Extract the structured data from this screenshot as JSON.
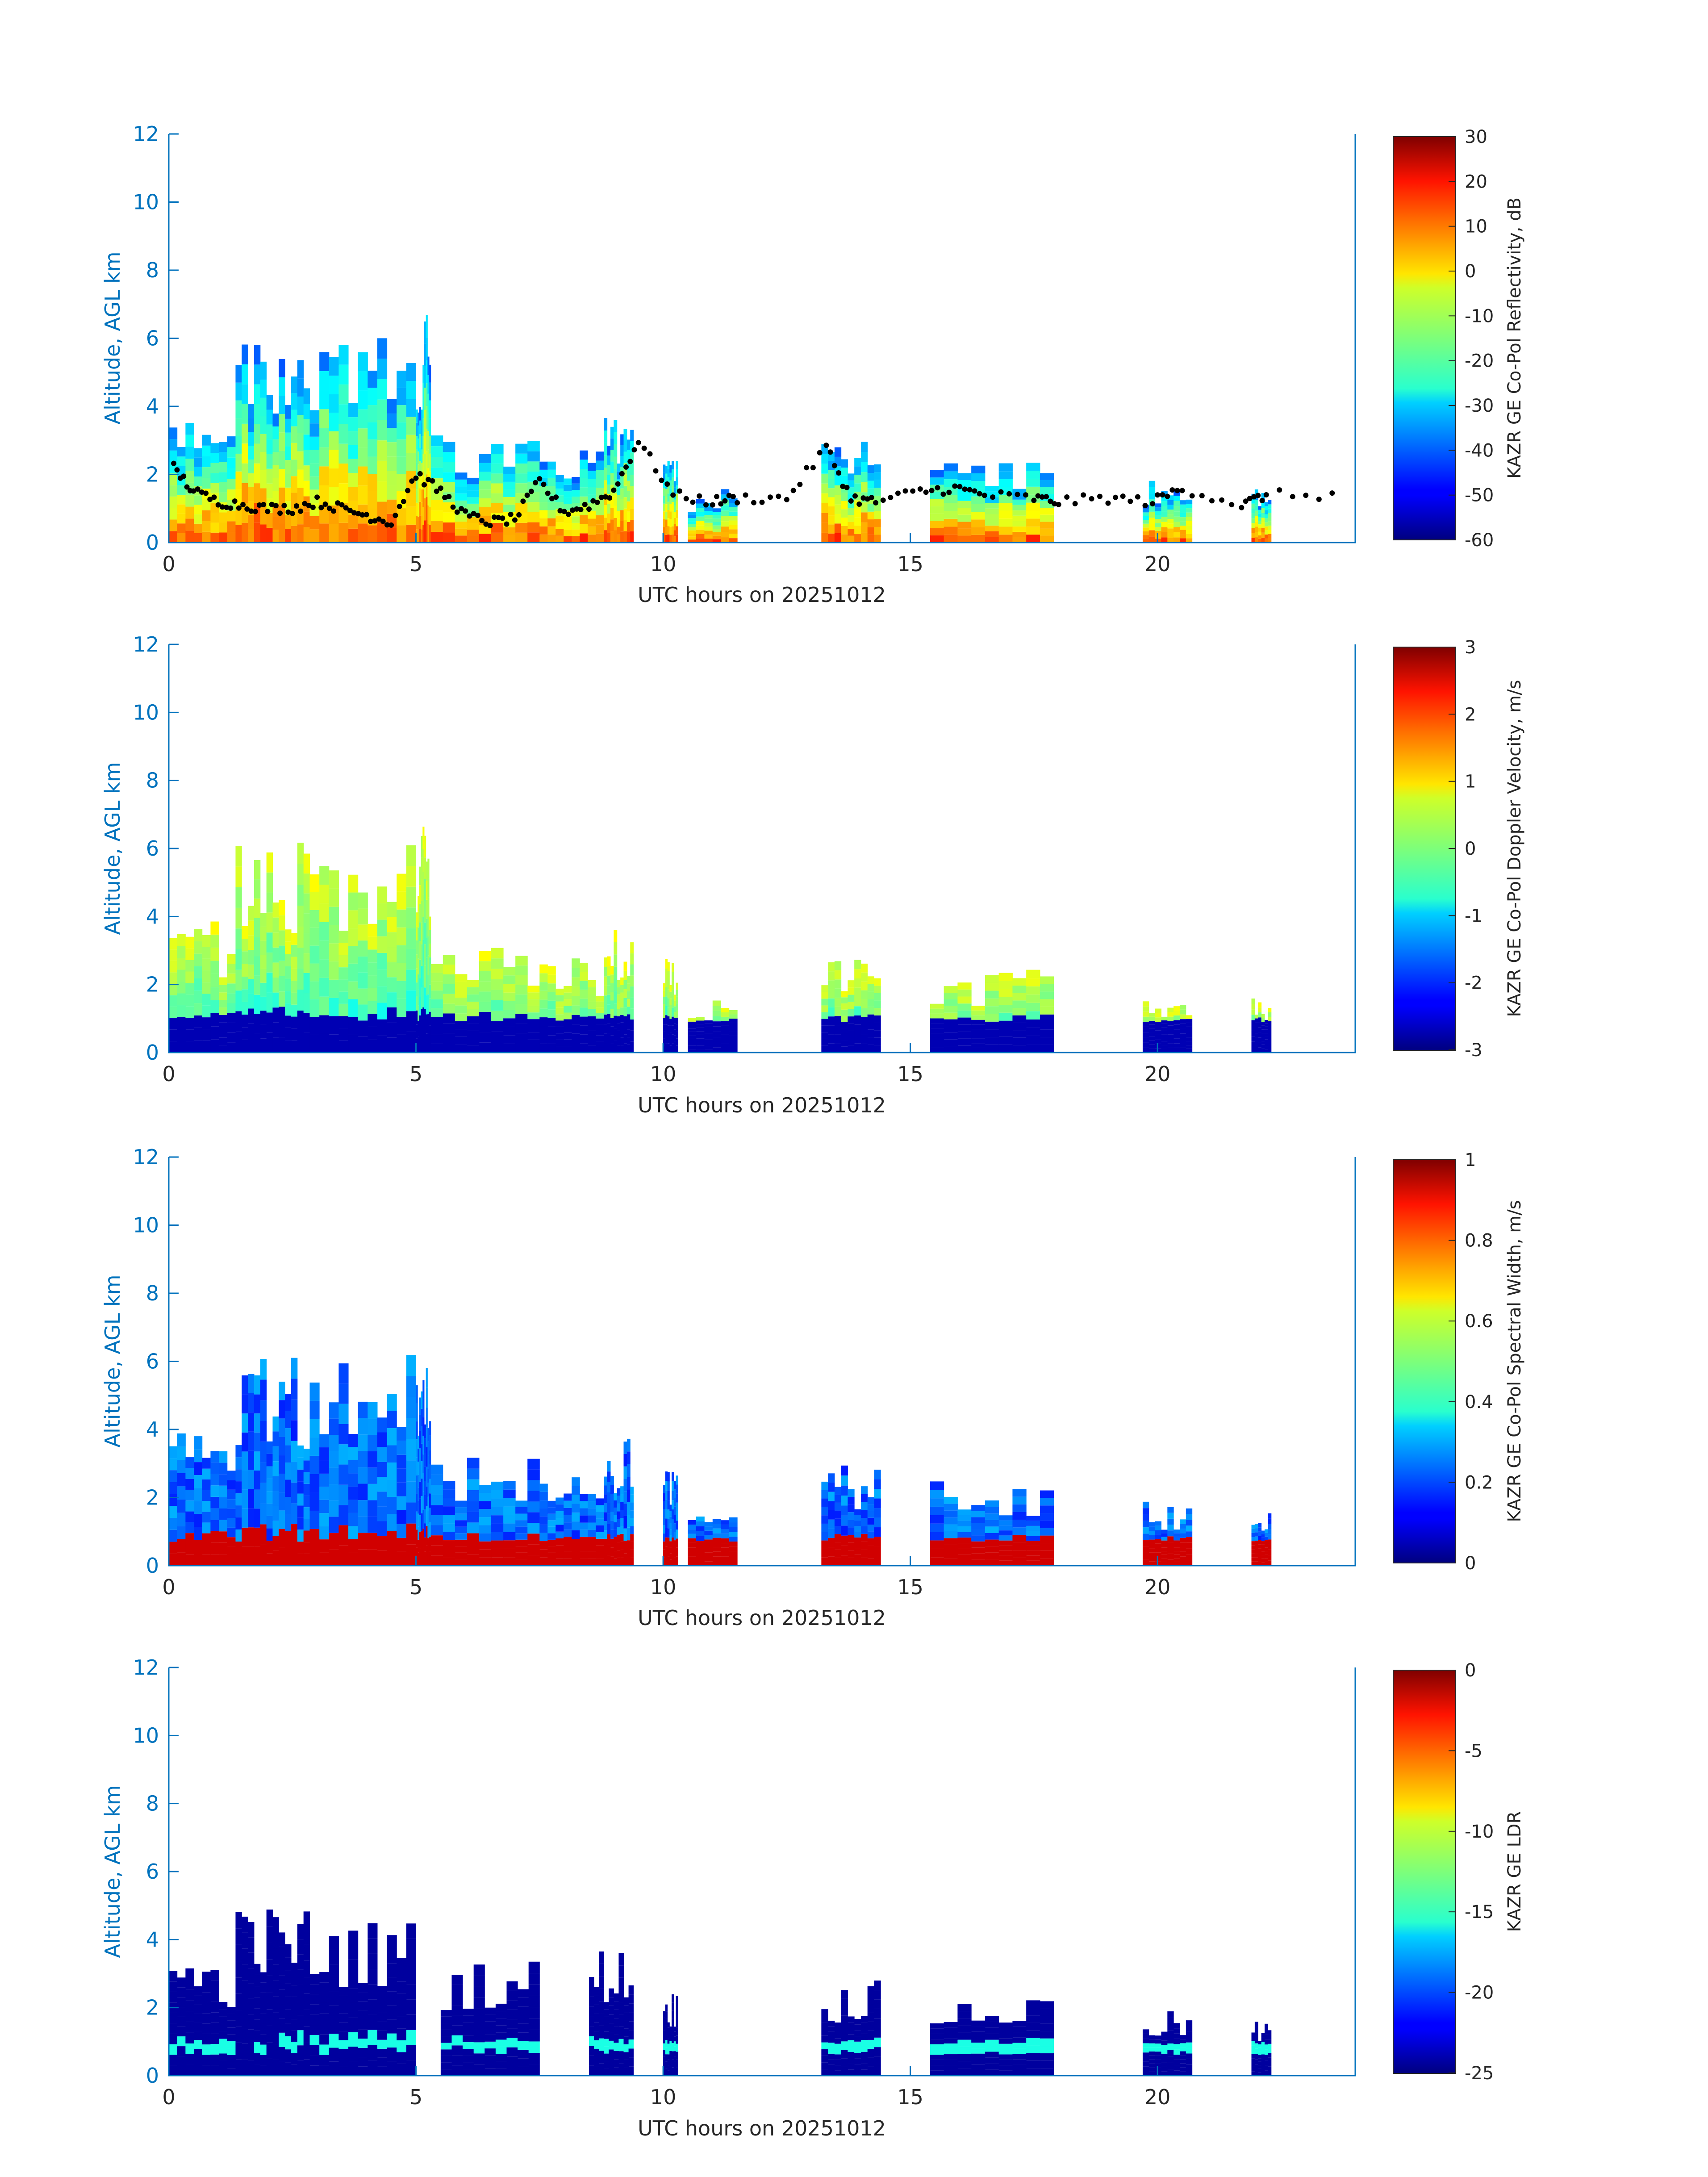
{
  "chart_data": [
    {
      "type": "heatmap",
      "ylabel": "Altitude, AGL km",
      "xlabel": "UTC hours on 20251012",
      "xlim": [
        0,
        24
      ],
      "ylim": [
        0,
        12
      ],
      "xticks": [
        "0",
        "5",
        "10",
        "15",
        "20"
      ],
      "yticks": [
        "0",
        "2",
        "4",
        "6",
        "8",
        "10",
        "12"
      ],
      "colorbar": {
        "label": "KAZR GE Co-Pol Reflectivity, dB",
        "range": [
          -60,
          30
        ],
        "ticks": [
          "30",
          "20",
          "10",
          "0",
          "-10",
          "-20",
          "-30",
          "-40",
          "-50",
          "-60"
        ]
      },
      "cloud_columns": [
        [
          0,
          1.35,
          4.0,
          8
        ],
        [
          1.35,
          2.85,
          6.2,
          12
        ],
        [
          2.85,
          5.0,
          6.2,
          11
        ],
        [
          5.0,
          5.3,
          6.8,
          9
        ],
        [
          5.3,
          7.5,
          3.2,
          9
        ],
        [
          7.5,
          8.8,
          2.8,
          8
        ],
        [
          8.8,
          9.4,
          3.8,
          9
        ],
        [
          10.0,
          10.3,
          2.8,
          7
        ],
        [
          10.5,
          11.5,
          1.6,
          6
        ],
        [
          13.2,
          14.4,
          3.0,
          9
        ],
        [
          15.4,
          17.9,
          2.5,
          9
        ],
        [
          19.7,
          20.7,
          1.9,
          8
        ],
        [
          21.9,
          22.3,
          1.6,
          6
        ]
      ],
      "cloud_base_points": [
        [
          0.1,
          2.2
        ],
        [
          0.5,
          1.5
        ],
        [
          1.0,
          1.2
        ],
        [
          1.5,
          1.1
        ],
        [
          2.0,
          1.0
        ],
        [
          2.5,
          1.0
        ],
        [
          3.0,
          1.2
        ],
        [
          3.5,
          1.0
        ],
        [
          4.0,
          0.8
        ],
        [
          4.5,
          0.6
        ],
        [
          5.0,
          2.0
        ],
        [
          5.5,
          1.5
        ],
        [
          6.0,
          0.8
        ],
        [
          6.5,
          0.6
        ],
        [
          7.0,
          0.7
        ],
        [
          7.5,
          1.8
        ],
        [
          8.0,
          0.9
        ],
        [
          8.5,
          1.1
        ],
        [
          9.0,
          1.5
        ],
        [
          9.5,
          3.0
        ],
        [
          10.2,
          1.4
        ],
        [
          11.0,
          1.2
        ],
        [
          11.5,
          1.3
        ],
        [
          12.5,
          1.3
        ],
        [
          13.3,
          2.8
        ],
        [
          13.8,
          1.3
        ],
        [
          14.3,
          1.2
        ],
        [
          15.2,
          1.5
        ],
        [
          15.9,
          1.6
        ],
        [
          16.5,
          1.4
        ],
        [
          17.5,
          1.3
        ],
        [
          18.0,
          1.2
        ],
        [
          19.0,
          1.3
        ],
        [
          19.9,
          1.2
        ],
        [
          20.5,
          1.6
        ],
        [
          21.7,
          1.1
        ],
        [
          22.2,
          1.4
        ],
        [
          23.8,
          1.4
        ]
      ]
    },
    {
      "type": "heatmap",
      "ylabel": "Altitude, AGL km",
      "xlabel": "UTC hours on 20251012",
      "xlim": [
        0,
        24
      ],
      "ylim": [
        0,
        12
      ],
      "xticks": [
        "0",
        "5",
        "10",
        "15",
        "20"
      ],
      "yticks": [
        "0",
        "2",
        "4",
        "6",
        "8",
        "10",
        "12"
      ],
      "colorbar": {
        "label": "KAZR GE Co-Pol Doppler Velocity, m/s",
        "range": [
          -3,
          3
        ],
        "ticks": [
          "3",
          "2",
          "1",
          "0",
          "-1",
          "-2",
          "-3"
        ]
      },
      "cloud_columns": [
        [
          0,
          1.35,
          4.0,
          8
        ],
        [
          1.35,
          2.85,
          6.2,
          12
        ],
        [
          2.85,
          5.0,
          6.2,
          11
        ],
        [
          5.0,
          5.3,
          6.8,
          9
        ],
        [
          5.3,
          7.5,
          3.2,
          9
        ],
        [
          7.5,
          8.8,
          2.8,
          8
        ],
        [
          8.8,
          9.4,
          3.8,
          9
        ],
        [
          10.0,
          10.3,
          2.8,
          7
        ],
        [
          10.5,
          11.5,
          1.6,
          6
        ],
        [
          13.2,
          14.4,
          3.0,
          9
        ],
        [
          15.4,
          17.9,
          2.5,
          9
        ],
        [
          19.7,
          20.7,
          1.9,
          8
        ],
        [
          21.9,
          22.3,
          1.6,
          6
        ]
      ]
    },
    {
      "type": "heatmap",
      "ylabel": "Altitude, AGL km",
      "xlabel": "UTC hours on 20251012",
      "xlim": [
        0,
        24
      ],
      "ylim": [
        0,
        12
      ],
      "xticks": [
        "0",
        "5",
        "10",
        "15",
        "20"
      ],
      "yticks": [
        "0",
        "2",
        "4",
        "6",
        "8",
        "10",
        "12"
      ],
      "colorbar": {
        "label": "KAZR GE Co-Pol Spectral Width, m/s",
        "range": [
          0,
          1
        ],
        "ticks": [
          "1",
          "0.8",
          "0.6",
          "0.4",
          "0.2",
          "0"
        ]
      },
      "cloud_columns": [
        [
          0,
          1.35,
          4.0,
          8
        ],
        [
          1.35,
          2.85,
          6.2,
          12
        ],
        [
          2.85,
          5.0,
          6.2,
          11
        ],
        [
          5.0,
          5.3,
          6.8,
          9
        ],
        [
          5.3,
          7.5,
          3.2,
          9
        ],
        [
          7.5,
          8.8,
          2.8,
          8
        ],
        [
          8.8,
          9.4,
          3.8,
          9
        ],
        [
          10.0,
          10.3,
          2.8,
          7
        ],
        [
          10.5,
          11.5,
          1.6,
          6
        ],
        [
          13.2,
          14.4,
          3.0,
          9
        ],
        [
          15.4,
          17.9,
          2.5,
          9
        ],
        [
          19.7,
          20.7,
          1.9,
          8
        ],
        [
          21.9,
          22.3,
          1.6,
          6
        ]
      ]
    },
    {
      "type": "heatmap",
      "ylabel": "Altitude, AGL km",
      "xlabel": "UTC hours on 20251012",
      "xlim": [
        0,
        24
      ],
      "ylim": [
        0,
        12
      ],
      "xticks": [
        "0",
        "5",
        "10",
        "15",
        "20"
      ],
      "yticks": [
        "0",
        "2",
        "4",
        "6",
        "8",
        "10",
        "12"
      ],
      "colorbar": {
        "label": "KAZR GE LDR",
        "range": [
          -25,
          0
        ],
        "ticks": [
          "0",
          "-5",
          "-10",
          "-15",
          "-20",
          "-25"
        ]
      },
      "cloud_columns": [
        [
          0,
          1.35,
          3.6,
          8
        ],
        [
          1.35,
          2.85,
          5.0,
          12
        ],
        [
          2.85,
          5.0,
          4.6,
          11
        ],
        [
          5.5,
          7.5,
          3.5,
          9
        ],
        [
          8.5,
          9.4,
          3.8,
          9
        ],
        [
          10.0,
          10.3,
          2.5,
          7
        ],
        [
          13.2,
          14.4,
          2.8,
          9
        ],
        [
          15.4,
          17.9,
          2.4,
          9
        ],
        [
          19.7,
          20.7,
          1.9,
          8
        ],
        [
          21.9,
          22.3,
          1.6,
          6
        ]
      ]
    }
  ]
}
